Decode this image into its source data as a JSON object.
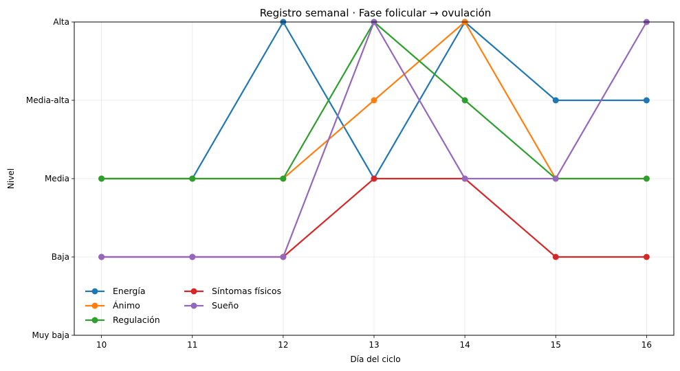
{
  "chart_data": {
    "type": "line",
    "title": "Registro semanal · Fase folicular → ovulación",
    "xlabel": "Día del ciclo",
    "ylabel": "Nivel",
    "x": [
      10,
      11,
      12,
      13,
      14,
      15,
      16
    ],
    "x_tick_labels": [
      "10",
      "11",
      "12",
      "13",
      "14",
      "15",
      "16"
    ],
    "xlim": [
      9.7,
      16.3
    ],
    "ylim": [
      0,
      4
    ],
    "y_tick_values": [
      0,
      1,
      2,
      3,
      4
    ],
    "y_tick_labels": [
      "Muy baja",
      "Baja",
      "Media",
      "Media-alta",
      "Alta"
    ],
    "grid": true,
    "legend_position": "lower-left",
    "series": [
      {
        "name": "Energía",
        "color": "#1f77b4",
        "values": [
          2,
          2,
          4,
          2,
          4,
          3,
          3
        ]
      },
      {
        "name": "Ánimo",
        "color": "#ff7f0e",
        "values": [
          2,
          2,
          2,
          3,
          4,
          2,
          2
        ]
      },
      {
        "name": "Regulación",
        "color": "#2ca02c",
        "values": [
          2,
          2,
          2,
          4,
          3,
          2,
          2
        ]
      },
      {
        "name": "Síntomas físicos",
        "color": "#d62728",
        "values": [
          1,
          1,
          1,
          2,
          2,
          1,
          1
        ]
      },
      {
        "name": "Sueño",
        "color": "#9467bd",
        "values": [
          1,
          1,
          1,
          4,
          2,
          2,
          4
        ]
      }
    ]
  }
}
